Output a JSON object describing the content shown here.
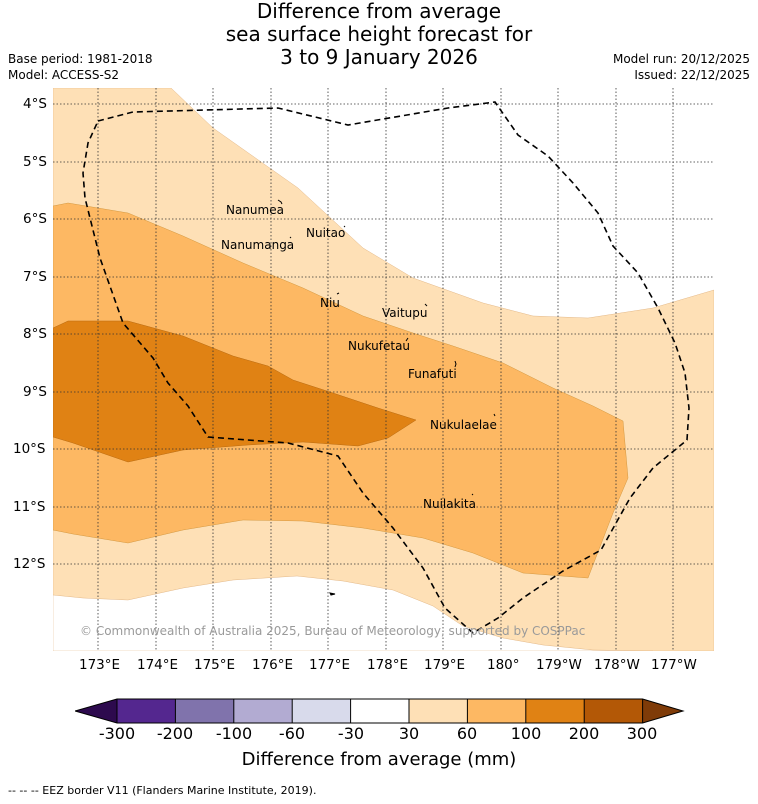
{
  "title": {
    "line1": "Difference from average",
    "line2": "sea surface height forecast for",
    "line3": "3 to 9 January 2026"
  },
  "meta": {
    "base_period": "Base period: 1981-2018",
    "model": "Model: ACCESS-S2",
    "model_run": "Model run: 20/12/2025",
    "issued": "Issued: 22/12/2025"
  },
  "map": {
    "latitude_labels": [
      "4°S",
      "5°S",
      "6°S",
      "7°S",
      "8°S",
      "9°S",
      "10°S",
      "11°S",
      "12°S"
    ],
    "longitude_labels": [
      "173°E",
      "174°E",
      "175°E",
      "176°E",
      "177°E",
      "178°E",
      "179°E",
      "180°",
      "179°W",
      "178°W",
      "177°W"
    ],
    "islands": [
      {
        "name": "Nanumea"
      },
      {
        "name": "Nuitao"
      },
      {
        "name": "Nanumanga"
      },
      {
        "name": "Niu"
      },
      {
        "name": "Vaitupu"
      },
      {
        "name": "Nukufetau"
      },
      {
        "name": "Funafuti"
      },
      {
        "name": "Nukulaelae"
      },
      {
        "name": "Nuilakita"
      }
    ],
    "copyright": "© Commonwealth of Australia 2025, Bureau of Meteorology, supported by COSPPac"
  },
  "colorbar": {
    "title": "Difference from average (mm)",
    "ticks": [
      "-300",
      "-200",
      "-100",
      "-60",
      "-30",
      "30",
      "60",
      "100",
      "200",
      "300"
    ],
    "colors": {
      "below_min": "#2d0a4e",
      "c1": "#54278f",
      "c2": "#8073ac",
      "c3": "#b2abd2",
      "c4": "#d8daeb",
      "c5": "#ffffff",
      "c6": "#fee0b6",
      "c7": "#fdb863",
      "c8": "#e08214",
      "c9": "#b35806",
      "above_max": "#7f3b08"
    }
  },
  "legend_note": "-- -- -- EEZ border V11 (Flanders Marine Institute, 2019)."
}
